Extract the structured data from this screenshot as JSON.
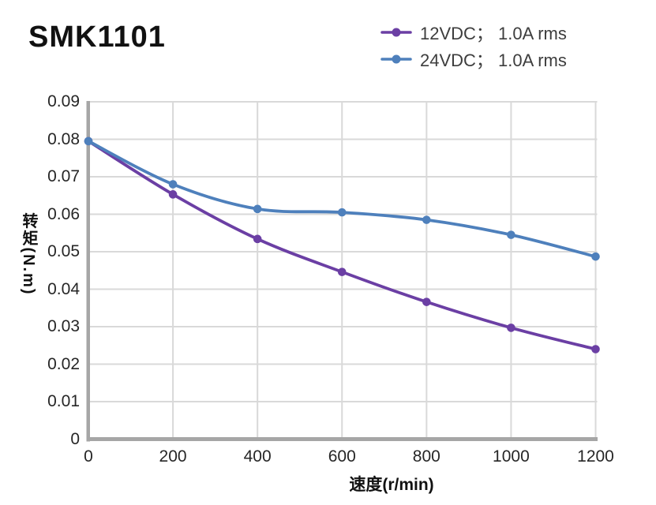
{
  "title": "SMK1101",
  "legend": {
    "position": "top-right",
    "items": [
      {
        "label": "12VDC； 1.0A rms",
        "color": "#6B3FA4",
        "marker": "line-dot"
      },
      {
        "label": "24VDC； 1.0A rms",
        "color": "#4E80BC",
        "marker": "line-dot"
      }
    ]
  },
  "chart_data": {
    "type": "line",
    "title": "SMK1101",
    "x": [
      0,
      200,
      400,
      600,
      800,
      1000,
      1200
    ],
    "series": [
      {
        "name": "12VDC； 1.0A rms",
        "color": "#6B3FA4",
        "values": [
          0.0795,
          0.0653,
          0.0534,
          0.0446,
          0.0366,
          0.0297,
          0.024
        ]
      },
      {
        "name": "24VDC； 1.0A rms",
        "color": "#4E80BC",
        "values": [
          0.0795,
          0.068,
          0.0614,
          0.0605,
          0.0585,
          0.0545,
          0.0487
        ]
      }
    ],
    "xlabel": "速度(r/min)",
    "ylabel": "转矩(N.m)",
    "xlim": [
      0,
      1200
    ],
    "ylim": [
      0,
      0.09
    ],
    "x_ticks": [
      "0",
      "200",
      "400",
      "600",
      "800",
      "1000",
      "1200"
    ],
    "y_ticks": [
      "0",
      "0.01",
      "0.02",
      "0.03",
      "0.04",
      "0.05",
      "0.06",
      "0.07",
      "0.08",
      "0.09"
    ],
    "grid": true,
    "smooth": true,
    "marker_style": "filled-circle",
    "colors": {
      "gridline": "#D9D9D9",
      "axis": "#A6A6A6",
      "tick_text": "#262626",
      "title_text": "#111111",
      "legend_text": "#3d3d3d",
      "background": "#ffffff"
    }
  }
}
